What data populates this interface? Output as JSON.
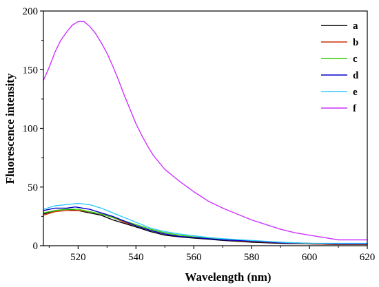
{
  "chart_data": {
    "type": "line",
    "title": "",
    "xlabel": "Wavelength (nm)",
    "ylabel": "Fluorescence intensity",
    "xlim": [
      508,
      620
    ],
    "ylim": [
      0,
      200
    ],
    "x_ticks": [
      520,
      540,
      560,
      580,
      600,
      620
    ],
    "y_ticks": [
      0,
      50,
      100,
      150,
      200
    ],
    "legend_position": "top-right",
    "grid": false,
    "series": [
      {
        "name": "a",
        "color": "#000000",
        "points": [
          [
            508,
            27
          ],
          [
            512,
            30
          ],
          [
            516,
            31
          ],
          [
            520,
            30
          ],
          [
            524,
            28
          ],
          [
            528,
            26
          ],
          [
            532,
            22
          ],
          [
            536,
            19
          ],
          [
            540,
            16
          ],
          [
            545,
            12
          ],
          [
            550,
            9
          ],
          [
            555,
            7.5
          ],
          [
            560,
            6.5
          ],
          [
            565,
            5.5
          ],
          [
            570,
            4.5
          ],
          [
            580,
            3
          ],
          [
            590,
            2
          ],
          [
            600,
            1.5
          ],
          [
            610,
            1
          ],
          [
            620,
            1
          ]
        ]
      },
      {
        "name": "b",
        "color": "#cc3300",
        "points": [
          [
            508,
            26
          ],
          [
            512,
            29
          ],
          [
            516,
            30
          ],
          [
            520,
            30
          ],
          [
            524,
            29
          ],
          [
            528,
            27
          ],
          [
            532,
            24
          ],
          [
            536,
            20
          ],
          [
            540,
            17
          ],
          [
            545,
            13
          ],
          [
            550,
            10
          ],
          [
            555,
            8
          ],
          [
            560,
            7
          ],
          [
            565,
            6
          ],
          [
            570,
            5
          ],
          [
            580,
            3.5
          ],
          [
            590,
            2.5
          ],
          [
            600,
            1.5
          ],
          [
            610,
            1
          ],
          [
            620,
            1
          ]
        ]
      },
      {
        "name": "c",
        "color": "#33cc00",
        "points": [
          [
            508,
            28
          ],
          [
            512,
            30
          ],
          [
            516,
            31
          ],
          [
            520,
            31
          ],
          [
            524,
            29
          ],
          [
            528,
            27
          ],
          [
            532,
            24
          ],
          [
            536,
            21
          ],
          [
            540,
            18
          ],
          [
            545,
            14
          ],
          [
            550,
            11
          ],
          [
            555,
            9
          ],
          [
            560,
            7.5
          ],
          [
            565,
            6.5
          ],
          [
            570,
            5.5
          ],
          [
            580,
            4
          ],
          [
            590,
            3
          ],
          [
            600,
            2
          ],
          [
            610,
            1.5
          ],
          [
            620,
            1.5
          ]
        ]
      },
      {
        "name": "d",
        "color": "#0000cc",
        "points": [
          [
            508,
            30
          ],
          [
            512,
            32
          ],
          [
            516,
            32
          ],
          [
            519,
            33
          ],
          [
            524,
            31
          ],
          [
            528,
            28
          ],
          [
            532,
            25
          ],
          [
            536,
            21
          ],
          [
            540,
            17
          ],
          [
            545,
            13
          ],
          [
            550,
            10
          ],
          [
            555,
            8
          ],
          [
            560,
            7
          ],
          [
            565,
            6
          ],
          [
            570,
            5
          ],
          [
            580,
            4
          ],
          [
            590,
            2.5
          ],
          [
            600,
            2
          ],
          [
            610,
            1.5
          ],
          [
            620,
            1.5
          ]
        ]
      },
      {
        "name": "e",
        "color": "#33ccff",
        "points": [
          [
            508,
            31
          ],
          [
            512,
            34
          ],
          [
            516,
            35
          ],
          [
            520,
            36
          ],
          [
            524,
            35
          ],
          [
            528,
            32
          ],
          [
            532,
            28
          ],
          [
            536,
            24
          ],
          [
            540,
            20
          ],
          [
            545,
            15
          ],
          [
            550,
            12
          ],
          [
            555,
            10
          ],
          [
            560,
            8.5
          ],
          [
            565,
            7
          ],
          [
            570,
            6
          ],
          [
            580,
            4.5
          ],
          [
            590,
            3
          ],
          [
            600,
            2
          ],
          [
            610,
            2
          ],
          [
            620,
            2
          ]
        ]
      },
      {
        "name": "f",
        "color": "#cc33ff",
        "points": [
          [
            508,
            141
          ],
          [
            510,
            152
          ],
          [
            512,
            165
          ],
          [
            514,
            175
          ],
          [
            516,
            182
          ],
          [
            518,
            188
          ],
          [
            520,
            191
          ],
          [
            522,
            191
          ],
          [
            524,
            187
          ],
          [
            526,
            181
          ],
          [
            528,
            173
          ],
          [
            530,
            164
          ],
          [
            532,
            153
          ],
          [
            534,
            141
          ],
          [
            536,
            128
          ],
          [
            538,
            116
          ],
          [
            540,
            104
          ],
          [
            542,
            94
          ],
          [
            544,
            85
          ],
          [
            546,
            77
          ],
          [
            548,
            71
          ],
          [
            550,
            65
          ],
          [
            555,
            55
          ],
          [
            560,
            46
          ],
          [
            565,
            38
          ],
          [
            570,
            32
          ],
          [
            575,
            27
          ],
          [
            580,
            22
          ],
          [
            585,
            18
          ],
          [
            590,
            14
          ],
          [
            595,
            11
          ],
          [
            600,
            9
          ],
          [
            605,
            7
          ],
          [
            610,
            5
          ],
          [
            615,
            5
          ],
          [
            620,
            5
          ]
        ]
      }
    ]
  }
}
